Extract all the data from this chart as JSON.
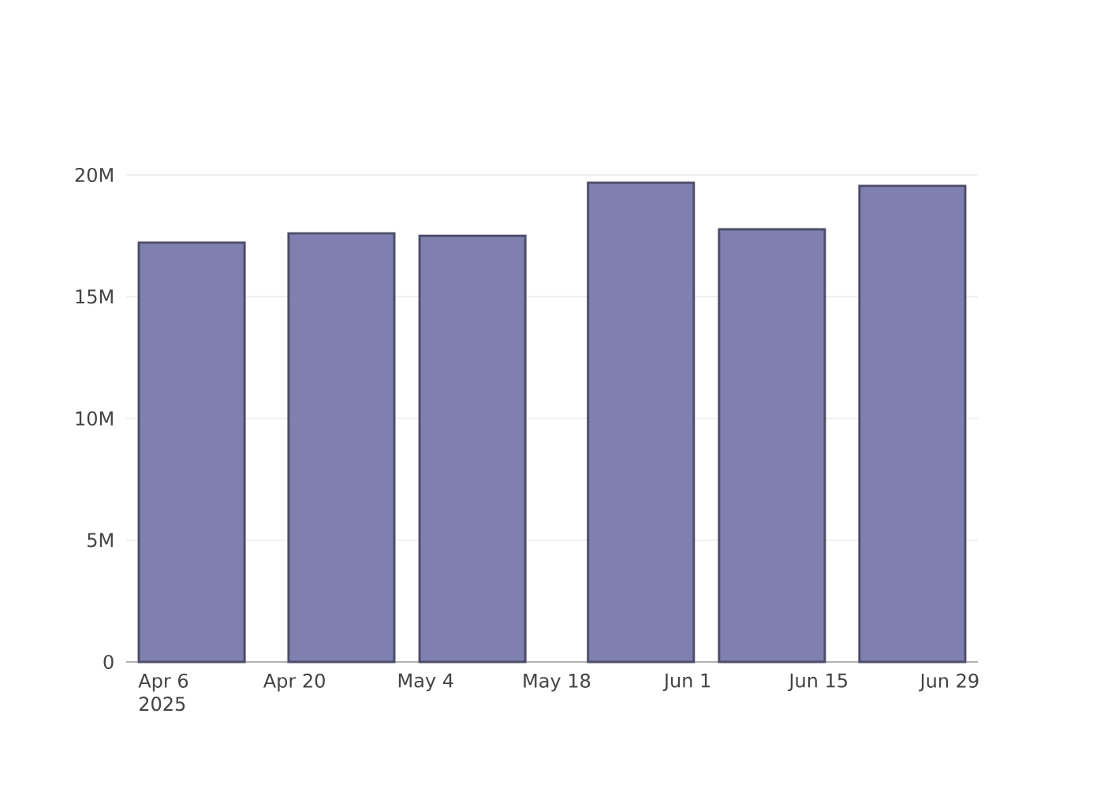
{
  "chart_data": {
    "type": "bar",
    "x": [
      "2025-04-09",
      "2025-04-25",
      "2025-05-09",
      "2025-05-27",
      "2025-06-10",
      "2025-06-25"
    ],
    "values": [
      17220000,
      17600000,
      17500000,
      19680000,
      17770000,
      19550000
    ],
    "color": "#8080b0",
    "xlim": [
      "2025-04-02",
      "2025-07-02"
    ],
    "xticks": [
      {
        "value": "2025-04-06",
        "label": "Apr 6\n2025"
      },
      {
        "value": "2025-04-20",
        "label": "Apr 20"
      },
      {
        "value": "2025-05-04",
        "label": "May 4"
      },
      {
        "value": "2025-05-18",
        "label": "May 18"
      },
      {
        "value": "2025-06-01",
        "label": "Jun 1"
      },
      {
        "value": "2025-06-15",
        "label": "Jun 15"
      },
      {
        "value": "2025-06-29",
        "label": "Jun 29"
      }
    ],
    "ylim": [
      0,
      20000000
    ],
    "yticks": [
      {
        "value": 0,
        "label": "0"
      },
      {
        "value": 5000000,
        "label": "5M"
      },
      {
        "value": 10000000,
        "label": "10M"
      },
      {
        "value": 15000000,
        "label": "15M"
      },
      {
        "value": 20000000,
        "label": "20M"
      }
    ],
    "grid": "y"
  }
}
